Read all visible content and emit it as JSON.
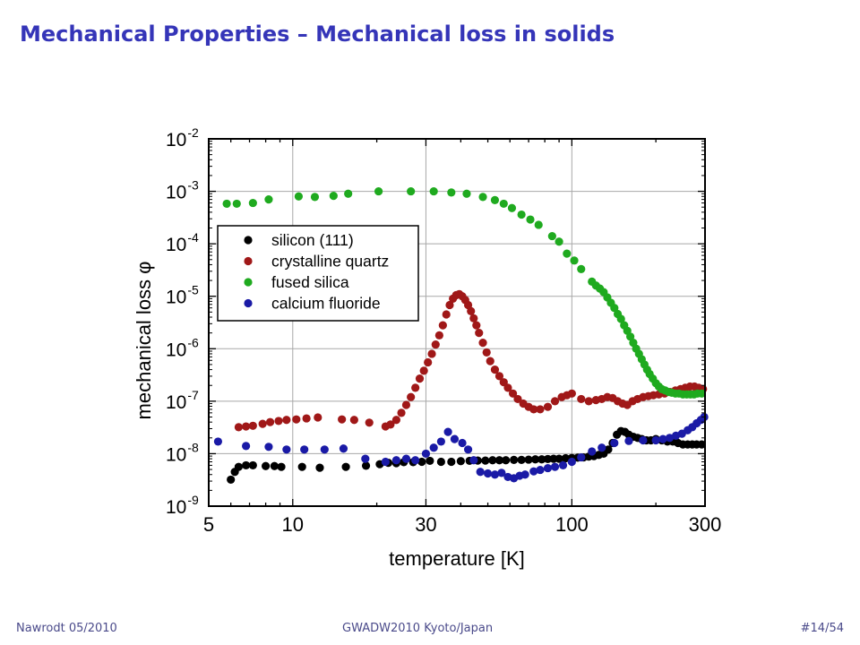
{
  "slide": {
    "title": "Mechanical Properties – Mechanical loss in solids",
    "footer_left": "Nawrodt 05/2010",
    "footer_center": "GWADW2010 Kyoto/Japan",
    "footer_right": "#14/54"
  },
  "chart_data": {
    "type": "scatter",
    "xlabel": "temperature [K]",
    "ylabel": "mechanical loss φ",
    "x_scale": "log",
    "y_scale": "log",
    "xlim": [
      5,
      300
    ],
    "ylim": [
      1e-09,
      0.01
    ],
    "x_ticks": [
      {
        "value": 5,
        "label": "5"
      },
      {
        "value": 10,
        "label": "10"
      },
      {
        "value": 30,
        "label": "30"
      },
      {
        "value": 100,
        "label": "100"
      },
      {
        "value": 300,
        "label": "300"
      }
    ],
    "y_ticks": [
      {
        "value": 1e-09,
        "base": "10",
        "exp": "-9"
      },
      {
        "value": 1e-08,
        "base": "10",
        "exp": "-8"
      },
      {
        "value": 1e-07,
        "base": "10",
        "exp": "-7"
      },
      {
        "value": 1e-06,
        "base": "10",
        "exp": "-6"
      },
      {
        "value": 1e-05,
        "base": "10",
        "exp": "-5"
      },
      {
        "value": 0.0001,
        "base": "10",
        "exp": "-4"
      },
      {
        "value": 0.001,
        "base": "10",
        "exp": "-3"
      },
      {
        "value": 0.01,
        "base": "10",
        "exp": "-2"
      }
    ],
    "grid": true,
    "legend_position": "upper-left",
    "series": [
      {
        "name": "silicon (111)",
        "color": "#000000",
        "points": [
          [
            6.0,
            3.2e-09
          ],
          [
            6.2,
            4.5e-09
          ],
          [
            6.4,
            5.6e-09
          ],
          [
            6.8,
            6e-09
          ],
          [
            7.2,
            6e-09
          ],
          [
            8.0,
            5.8e-09
          ],
          [
            8.6,
            5.8e-09
          ],
          [
            9.1,
            5.6e-09
          ],
          [
            10.8,
            5.6e-09
          ],
          [
            12.5,
            5.4e-09
          ],
          [
            15.5,
            5.6e-09
          ],
          [
            18.3,
            5.9e-09
          ],
          [
            20.5,
            6.3e-09
          ],
          [
            22.0,
            6.7e-09
          ],
          [
            23.5,
            6.6e-09
          ],
          [
            25.0,
            6.9e-09
          ],
          [
            27.0,
            6.9e-09
          ],
          [
            29.0,
            7e-09
          ],
          [
            31.0,
            7.3e-09
          ],
          [
            34.0,
            7e-09
          ],
          [
            37.0,
            7e-09
          ],
          [
            40.0,
            7.2e-09
          ],
          [
            43.0,
            7.3e-09
          ],
          [
            46.0,
            7.4e-09
          ],
          [
            49.0,
            7.4e-09
          ],
          [
            52.0,
            7.5e-09
          ],
          [
            55.0,
            7.5e-09
          ],
          [
            58.0,
            7.5e-09
          ],
          [
            62.0,
            7.6e-09
          ],
          [
            66.0,
            7.6e-09
          ],
          [
            70.0,
            7.7e-09
          ],
          [
            74.0,
            7.8e-09
          ],
          [
            78.0,
            7.8e-09
          ],
          [
            82.0,
            7.9e-09
          ],
          [
            86.0,
            8e-09
          ],
          [
            90.0,
            8e-09
          ],
          [
            95.0,
            8.2e-09
          ],
          [
            100.0,
            8.3e-09
          ],
          [
            105.0,
            8.4e-09
          ],
          [
            110.0,
            8.5e-09
          ],
          [
            115.0,
            8.8e-09
          ],
          [
            120.0,
            9e-09
          ],
          [
            125.0,
            9.5e-09
          ],
          [
            130.0,
            1e-08
          ],
          [
            135.0,
            1.2e-08
          ],
          [
            140.0,
            1.6e-08
          ],
          [
            145.0,
            2.3e-08
          ],
          [
            150.0,
            2.7e-08
          ],
          [
            155.0,
            2.6e-08
          ],
          [
            160.0,
            2.3e-08
          ],
          [
            166.0,
            2.1e-08
          ],
          [
            172.0,
            2e-08
          ],
          [
            178.0,
            1.9e-08
          ],
          [
            185.0,
            1.8e-08
          ],
          [
            192.0,
            1.8e-08
          ],
          [
            200.0,
            1.9e-08
          ],
          [
            210.0,
            1.8e-08
          ],
          [
            220.0,
            1.7e-08
          ],
          [
            230.0,
            1.7e-08
          ],
          [
            240.0,
            1.6e-08
          ],
          [
            250.0,
            1.5e-08
          ],
          [
            260.0,
            1.5e-08
          ],
          [
            270.0,
            1.5e-08
          ],
          [
            280.0,
            1.5e-08
          ],
          [
            292.0,
            1.5e-08
          ]
        ]
      },
      {
        "name": "crystalline quartz",
        "color": "#a01818",
        "points": [
          [
            6.4,
            3.2e-08
          ],
          [
            6.8,
            3.3e-08
          ],
          [
            7.2,
            3.4e-08
          ],
          [
            7.8,
            3.7e-08
          ],
          [
            8.3,
            4e-08
          ],
          [
            8.9,
            4.2e-08
          ],
          [
            9.5,
            4.4e-08
          ],
          [
            10.3,
            4.5e-08
          ],
          [
            11.2,
            4.7e-08
          ],
          [
            12.3,
            4.9e-08
          ],
          [
            15.0,
            4.5e-08
          ],
          [
            16.6,
            4.4e-08
          ],
          [
            18.8,
            3.9e-08
          ],
          [
            21.5,
            3.3e-08
          ],
          [
            22.4,
            3.6e-08
          ],
          [
            23.5,
            4.4e-08
          ],
          [
            24.5,
            6e-08
          ],
          [
            25.5,
            8.5e-08
          ],
          [
            26.5,
            1.2e-07
          ],
          [
            27.5,
            1.8e-07
          ],
          [
            28.5,
            2.7e-07
          ],
          [
            29.5,
            3.8e-07
          ],
          [
            30.5,
            5.5e-07
          ],
          [
            31.5,
            8e-07
          ],
          [
            32.5,
            1.2e-06
          ],
          [
            33.5,
            1.8e-06
          ],
          [
            34.5,
            2.8e-06
          ],
          [
            35.5,
            4.5e-06
          ],
          [
            36.5,
            6.8e-06
          ],
          [
            37.5,
            9e-06
          ],
          [
            38.5,
            1.05e-05
          ],
          [
            39.5,
            1.1e-05
          ],
          [
            40.5,
            1e-05
          ],
          [
            41.5,
            8.5e-06
          ],
          [
            42.5,
            6.8e-06
          ],
          [
            43.5,
            5.2e-06
          ],
          [
            44.5,
            3.8e-06
          ],
          [
            45.5,
            2.8e-06
          ],
          [
            46.5,
            2e-06
          ],
          [
            48.0,
            1.3e-06
          ],
          [
            49.5,
            8.5e-07
          ],
          [
            51.0,
            5.8e-07
          ],
          [
            53.0,
            4e-07
          ],
          [
            55.0,
            3e-07
          ],
          [
            57.0,
            2.3e-07
          ],
          [
            59.0,
            1.8e-07
          ],
          [
            61.5,
            1.4e-07
          ],
          [
            64.0,
            1.1e-07
          ],
          [
            67.0,
            9e-08
          ],
          [
            70.0,
            7.8e-08
          ],
          [
            73.0,
            7e-08
          ],
          [
            77.0,
            7e-08
          ],
          [
            82.0,
            7.8e-08
          ],
          [
            87.0,
            1e-07
          ],
          [
            92.0,
            1.2e-07
          ],
          [
            96.0,
            1.3e-07
          ],
          [
            100.0,
            1.4e-07
          ],
          [
            108.0,
            1.1e-07
          ],
          [
            115.0,
            1e-07
          ],
          [
            122.0,
            1.05e-07
          ],
          [
            128.0,
            1.1e-07
          ],
          [
            134.0,
            1.2e-07
          ],
          [
            140.0,
            1.15e-07
          ],
          [
            146.0,
            1e-07
          ],
          [
            152.0,
            9e-08
          ],
          [
            158.0,
            8.5e-08
          ],
          [
            165.0,
            1e-07
          ],
          [
            172.0,
            1.1e-07
          ],
          [
            180.0,
            1.2e-07
          ],
          [
            188.0,
            1.25e-07
          ],
          [
            196.0,
            1.3e-07
          ],
          [
            205.0,
            1.35e-07
          ],
          [
            215.0,
            1.4e-07
          ],
          [
            225.0,
            1.5e-07
          ],
          [
            235.0,
            1.6e-07
          ],
          [
            245.0,
            1.7e-07
          ],
          [
            255.0,
            1.8e-07
          ],
          [
            265.0,
            1.9e-07
          ],
          [
            275.0,
            1.9e-07
          ],
          [
            285.0,
            1.8e-07
          ],
          [
            295.0,
            1.7e-07
          ]
        ]
      },
      {
        "name": "fused silica",
        "color": "#1faa1f",
        "points": [
          [
            5.8,
            0.00058
          ],
          [
            6.3,
            0.00058
          ],
          [
            7.2,
            0.0006
          ],
          [
            8.2,
            0.0007
          ],
          [
            10.5,
            0.0008
          ],
          [
            12.0,
            0.00078
          ],
          [
            14.0,
            0.00082
          ],
          [
            15.8,
            0.0009
          ],
          [
            20.3,
            0.001
          ],
          [
            26.5,
            0.001
          ],
          [
            32.0,
            0.001
          ],
          [
            37.0,
            0.00095
          ],
          [
            42.0,
            0.0009
          ],
          [
            48.0,
            0.00078
          ],
          [
            53.0,
            0.00068
          ],
          [
            57.0,
            0.00058
          ],
          [
            61.0,
            0.00048
          ],
          [
            66.0,
            0.00036
          ],
          [
            71.0,
            0.00029
          ],
          [
            76.0,
            0.00023
          ],
          [
            85.0,
            0.00014
          ],
          [
            90.0,
            0.00011
          ],
          [
            96.0,
            6.5e-05
          ],
          [
            102.0,
            4.8e-05
          ],
          [
            108.0,
            3.3e-05
          ],
          [
            118.0,
            1.9e-05
          ],
          [
            122.0,
            1.6e-05
          ],
          [
            126.0,
            1.4e-05
          ],
          [
            130.0,
            1.2e-05
          ],
          [
            134.0,
            9.5e-06
          ],
          [
            138.0,
            7.5e-06
          ],
          [
            142.0,
            6e-06
          ],
          [
            146.0,
            4.6e-06
          ],
          [
            150.0,
            3.7e-06
          ],
          [
            154.0,
            2.8e-06
          ],
          [
            158.0,
            2.2e-06
          ],
          [
            162.0,
            1.7e-06
          ],
          [
            166.0,
            1.3e-06
          ],
          [
            170.0,
            1e-06
          ],
          [
            174.0,
            8e-07
          ],
          [
            178.0,
            6.3e-07
          ],
          [
            182.0,
            5e-07
          ],
          [
            186.0,
            4e-07
          ],
          [
            190.0,
            3.3e-07
          ],
          [
            195.0,
            2.7e-07
          ],
          [
            200.0,
            2.2e-07
          ],
          [
            205.0,
            1.9e-07
          ],
          [
            210.0,
            1.7e-07
          ],
          [
            216.0,
            1.6e-07
          ],
          [
            222.0,
            1.5e-07
          ],
          [
            228.0,
            1.45e-07
          ],
          [
            235.0,
            1.4e-07
          ],
          [
            242.0,
            1.4e-07
          ],
          [
            250.0,
            1.35e-07
          ],
          [
            258.0,
            1.35e-07
          ],
          [
            266.0,
            1.35e-07
          ],
          [
            274.0,
            1.35e-07
          ],
          [
            282.0,
            1.4e-07
          ],
          [
            292.0,
            1.4e-07
          ]
        ]
      },
      {
        "name": "calcium fluoride",
        "color": "#1a1aa6",
        "points": [
          [
            5.4,
            1.7e-08
          ],
          [
            6.8,
            1.4e-08
          ],
          [
            8.2,
            1.35e-08
          ],
          [
            9.5,
            1.2e-08
          ],
          [
            11.0,
            1.2e-08
          ],
          [
            13.0,
            1.2e-08
          ],
          [
            15.2,
            1.25e-08
          ],
          [
            18.2,
            8e-09
          ],
          [
            21.5,
            7e-09
          ],
          [
            23.5,
            7.5e-09
          ],
          [
            25.5,
            8e-09
          ],
          [
            27.5,
            7.5e-09
          ],
          [
            30.0,
            1e-08
          ],
          [
            32.0,
            1.3e-08
          ],
          [
            34.0,
            1.7e-08
          ],
          [
            36.0,
            2.6e-08
          ],
          [
            38.0,
            1.9e-08
          ],
          [
            40.5,
            1.6e-08
          ],
          [
            42.5,
            1.2e-08
          ],
          [
            44.5,
            7.5e-09
          ],
          [
            47.0,
            4.5e-09
          ],
          [
            50.0,
            4.2e-09
          ],
          [
            53.0,
            4e-09
          ],
          [
            56.0,
            4.3e-09
          ],
          [
            59.0,
            3.6e-09
          ],
          [
            62.0,
            3.4e-09
          ],
          [
            65.0,
            3.8e-09
          ],
          [
            68.0,
            4e-09
          ],
          [
            73.0,
            4.6e-09
          ],
          [
            77.0,
            4.9e-09
          ],
          [
            82.0,
            5.3e-09
          ],
          [
            87.0,
            5.6e-09
          ],
          [
            93.0,
            6e-09
          ],
          [
            100.0,
            7e-09
          ],
          [
            108.0,
            8.5e-09
          ],
          [
            118.0,
            1.1e-08
          ],
          [
            128.0,
            1.3e-08
          ],
          [
            142.0,
            1.6e-08
          ],
          [
            160.0,
            1.75e-08
          ],
          [
            180.0,
            1.8e-08
          ],
          [
            200.0,
            1.8e-08
          ],
          [
            212.0,
            1.9e-08
          ],
          [
            224.0,
            2e-08
          ],
          [
            236.0,
            2.2e-08
          ],
          [
            248.0,
            2.4e-08
          ],
          [
            260.0,
            2.8e-08
          ],
          [
            270.0,
            3.2e-08
          ],
          [
            280.0,
            3.8e-08
          ],
          [
            290.0,
            4.4e-08
          ],
          [
            298.0,
            5e-08
          ]
        ]
      }
    ]
  }
}
